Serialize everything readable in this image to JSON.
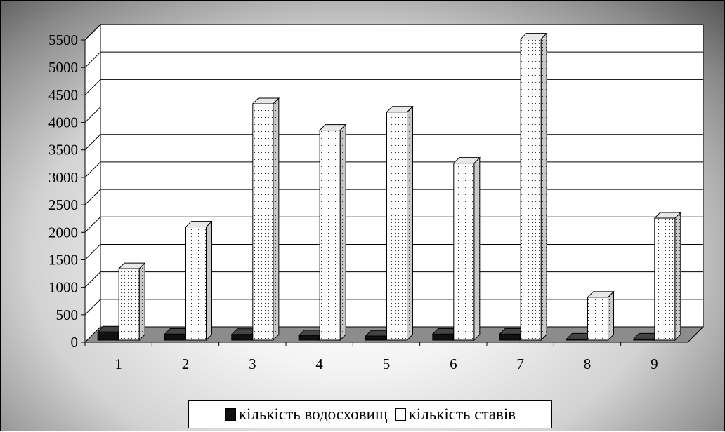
{
  "chart_data": {
    "type": "bar",
    "style": "3d-clustered-column",
    "categories": [
      "1",
      "2",
      "3",
      "4",
      "5",
      "6",
      "7",
      "8",
      "9"
    ],
    "series": [
      {
        "name": "кількість водосховищ",
        "values": [
          150,
          110,
          105,
          80,
          75,
          110,
          110,
          20,
          20
        ],
        "color": "#111111"
      },
      {
        "name": "кількість ставів",
        "values": [
          1300,
          2060,
          4300,
          3820,
          4150,
          3220,
          5480,
          780,
          2220
        ],
        "color": "#ffffff"
      }
    ],
    "yticks": [
      "0",
      "500",
      "1000",
      "1500",
      "2000",
      "2500",
      "3000",
      "3500",
      "4000",
      "4500",
      "5000",
      "5500"
    ],
    "ylim": [
      0,
      5500
    ],
    "grid": true,
    "legend_position": "bottom"
  }
}
